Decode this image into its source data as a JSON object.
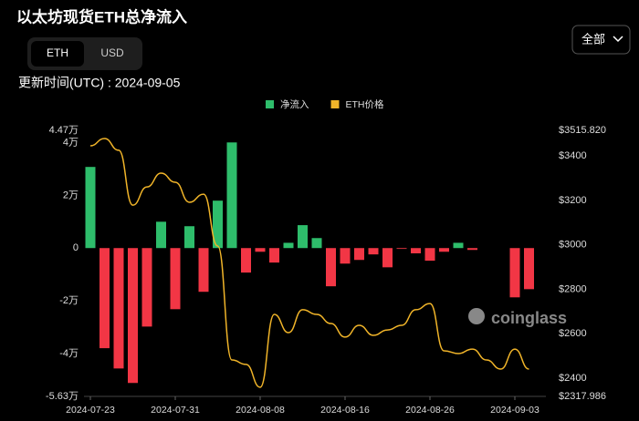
{
  "ui": {
    "toggle": [
      "ETH",
      "USD"
    ],
    "selected": 0,
    "dropdown": "全部",
    "updated": "更新时间(UTC) : 2024-09-05",
    "watermark": "coinglass"
  },
  "chart_data": {
    "type": "bar",
    "title": "以太坊现货ETH总净流入",
    "categories": [
      "2024-07-23",
      null,
      null,
      null,
      null,
      null,
      "2024-07-31",
      null,
      null,
      null,
      null,
      null,
      "2024-08-08",
      null,
      null,
      null,
      null,
      null,
      "2024-08-16",
      null,
      null,
      null,
      null,
      null,
      "2024-08-26",
      null,
      null,
      null,
      null,
      null,
      "2024-09-03",
      null
    ],
    "series": [
      {
        "name": "净流入",
        "type": "bar",
        "color": "#2ebd6b",
        "negative_color": "#f23645",
        "values": [
          30800,
          -38000,
          -45700,
          -51200,
          -29800,
          10000,
          -23200,
          8300,
          -16600,
          18000,
          40100,
          -9300,
          -1400,
          -5500,
          2000,
          8700,
          3800,
          -14500,
          -5900,
          -4500,
          -2400,
          -7300,
          -300,
          -2000,
          -4800,
          -1400,
          2000,
          -700,
          0,
          0,
          -18700,
          -15600
        ]
      },
      {
        "name": "ETH价格",
        "type": "line",
        "axis": "y2",
        "color": "#f0b429",
        "values": [
          3446,
          3479,
          3426,
          3179,
          3261,
          3323,
          3282,
          3192,
          3228,
          2995,
          2482,
          2462,
          2359,
          2687,
          2605,
          2708,
          2687,
          2646,
          2585,
          2638,
          2593,
          2617,
          2638,
          2708,
          2736,
          2523,
          2511,
          2531,
          2482,
          2441,
          2531,
          2441
        ]
      }
    ],
    "ylim": [
      -56300,
      44700
    ],
    "yticks": [
      {
        "value": 44700,
        "label": "4.47万"
      },
      {
        "value": 40000,
        "label": "4万"
      },
      {
        "value": 20000,
        "label": "2万"
      },
      0,
      {
        "value": -20000,
        "label": "-2万"
      },
      {
        "value": -40000,
        "label": "-4万"
      },
      {
        "value": -56300,
        "label": "-5.63万"
      }
    ],
    "y2lim": [
      2317.986,
      3515.82
    ],
    "y2ticks": [
      {
        "value": 3515.82,
        "label": "$3515.820"
      },
      {
        "value": 3400,
        "label": "$3400"
      },
      {
        "value": 3200,
        "label": "$3200"
      },
      {
        "value": 3000,
        "label": "$3000"
      },
      {
        "value": 2800,
        "label": "$2800"
      },
      {
        "value": 2600,
        "label": "$2600"
      },
      {
        "value": 2400,
        "label": "$2400"
      },
      {
        "value": 2317.986,
        "label": "$2317.986"
      }
    ],
    "legend": "top"
  }
}
